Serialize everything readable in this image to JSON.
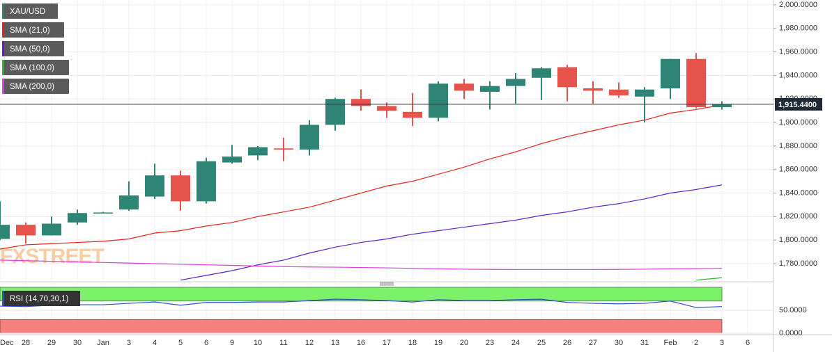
{
  "chart_data": [
    {
      "type": "candlestick",
      "series_name": "XAU/USD",
      "color_up": "#2f8575",
      "color_down": "#e5534b",
      "open": [
        1801,
        1813,
        1804,
        1815,
        1823,
        1826,
        1837,
        1855,
        1833,
        1866,
        1872,
        1878,
        1877,
        1898,
        1920,
        1914,
        1909,
        1904,
        1933,
        1926,
        1931,
        1938,
        1947,
        1929,
        1928,
        1922,
        1929,
        1954,
        1913,
        null
      ],
      "high": [
        1833,
        1815,
        1820,
        1826,
        1824,
        1850,
        1865,
        1859,
        1870,
        1881,
        1880,
        1887,
        1902,
        1921,
        1928,
        1917,
        1925,
        1935,
        1937,
        1935,
        1942,
        1947,
        1949,
        1935,
        1934,
        1930,
        1954,
        1959,
        1918,
        null
      ],
      "low": [
        1800,
        1797,
        1804,
        1813,
        1823,
        1825,
        1835,
        1825,
        1831,
        1865,
        1868,
        1867,
        1872,
        1893,
        1910,
        1904,
        1897,
        1901,
        1920,
        1911,
        1916,
        1919,
        1918,
        1916,
        1921,
        1900,
        1920,
        1912,
        1911,
        null
      ],
      "close": [
        1813,
        1804,
        1814,
        1823,
        1823.5,
        1838,
        1855,
        1833,
        1867,
        1871,
        1879,
        1877,
        1898,
        1920,
        1914,
        1910,
        1904,
        1933,
        1927,
        1931,
        1937,
        1946,
        1930,
        1927,
        1923,
        1928,
        1954,
        1913,
        1915.44,
        null
      ],
      "series": [
        {
          "name": "SMA (21,0)",
          "color": "#e8221c",
          "values": [
            1792.4,
            1796,
            1797,
            1798,
            1799,
            1801,
            1806,
            1808,
            1812,
            1815,
            1820,
            1824,
            1828,
            1834,
            1840,
            1846,
            1850,
            1856,
            1862,
            1869,
            1875,
            1882,
            1888,
            1893,
            1898,
            1902,
            1908,
            1911,
            1915,
            null
          ]
        },
        {
          "name": "SMA (50,0)",
          "color": "#5a1ec8",
          "values": [
            null,
            null,
            null,
            null,
            null,
            null,
            null,
            1766,
            1770,
            1774,
            1779,
            1783,
            1789,
            1794,
            1798,
            1801,
            1805,
            1808,
            1811,
            1814,
            1817,
            1821,
            1824,
            1828,
            1831,
            1835,
            1840,
            1843,
            1847,
            null
          ]
        },
        {
          "name": "SMA (100,0)",
          "color": "#28b428",
          "values": [
            null,
            null,
            null,
            null,
            null,
            null,
            null,
            null,
            null,
            null,
            null,
            null,
            null,
            null,
            null,
            null,
            null,
            null,
            null,
            null,
            null,
            null,
            null,
            null,
            null,
            null,
            null,
            1766,
            1768,
            null
          ]
        },
        {
          "name": "SMA (200,0)",
          "color": "#e03ce0",
          "values": [
            1783,
            1782.5,
            1782,
            1781.5,
            1781,
            1780.5,
            1780,
            1779.5,
            1779,
            1778.5,
            1778,
            1777.5,
            1777.2,
            1777,
            1776.7,
            1776.4,
            1776,
            1775.6,
            1775.3,
            1775.1,
            1775,
            1775,
            1775,
            1775,
            1775.1,
            1775.3,
            1775.6,
            1775.8,
            1776,
            null
          ]
        }
      ],
      "last_price": {
        "value": 1915.44,
        "label": "1,915.4400"
      },
      "watermark": "FXSTREET",
      "ylim": [
        1765.8,
        2004.1
      ],
      "yticks": [
        {
          "value": 1780,
          "label": "1,780.0000"
        },
        {
          "value": 1800,
          "label": "1,800.0000"
        },
        {
          "value": 1820,
          "label": "1,820.0000"
        },
        {
          "value": 1840,
          "label": "1,840.0000"
        },
        {
          "value": 1860,
          "label": "1,860.0000"
        },
        {
          "value": 1880,
          "label": "1,880.0000"
        },
        {
          "value": 1900,
          "label": "1,900.0000"
        },
        {
          "value": 1920,
          "label": "1,920.0000"
        },
        {
          "value": 1940,
          "label": "1,940.0000"
        },
        {
          "value": 1960,
          "label": "1,960.0000"
        },
        {
          "value": 1980,
          "label": "1,980.0000"
        },
        {
          "value": 2000,
          "label": "2,000.0000"
        }
      ],
      "grid": true
    },
    {
      "type": "line",
      "title": "RSI (14,70,30,1)",
      "categories": [
        "Dec",
        "28",
        "29",
        "30",
        "Jan",
        "3",
        "4",
        "5",
        "6",
        "9",
        "10",
        "11",
        "12",
        "13",
        "16",
        "17",
        "18",
        "19",
        "20",
        "23",
        "24",
        "25",
        "26",
        "27",
        "30",
        "31",
        "Feb",
        "2",
        "3",
        "6"
      ],
      "series": [
        {
          "name": "RSI",
          "color": "#2a4fd0",
          "values": [
            59,
            58,
            61,
            62,
            62,
            65,
            68,
            61,
            67,
            67,
            68,
            68,
            71,
            74,
            73,
            71,
            68,
            73,
            71,
            71,
            73,
            74,
            67,
            65,
            64,
            65,
            70,
            56,
            58,
            null
          ]
        }
      ],
      "upper_band": {
        "range": [
          70,
          100
        ],
        "color": "#7cf26a"
      },
      "lower_band": {
        "range": [
          0,
          30
        ],
        "color": "#f77f7f"
      },
      "ylim": [
        0,
        104.5
      ],
      "yticks": [
        {
          "value": 0,
          "label": "0.0000"
        },
        {
          "value": 50,
          "label": "50.0000"
        }
      ],
      "grid": true
    }
  ]
}
